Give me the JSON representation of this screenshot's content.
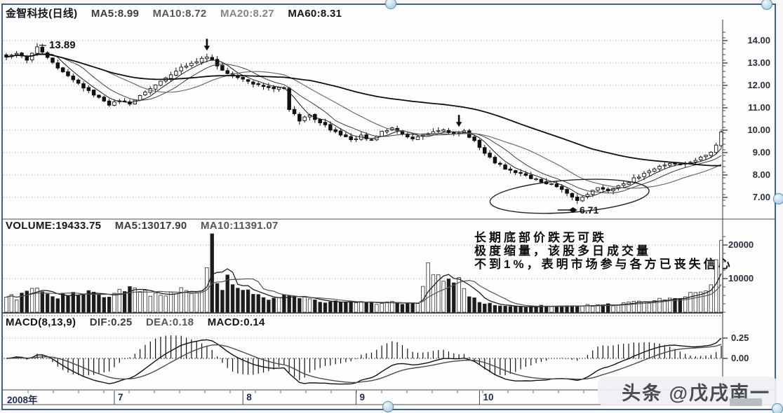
{
  "title_bar": {
    "parts": [
      "金智科技(日线)",
      "MA5:8.99",
      "MA10:8.72",
      "MA20:8.27",
      "MA60:8.31"
    ]
  },
  "price_panel": {
    "axis_labels": [
      "14.00",
      "13.00",
      "12.00",
      "11.00",
      "10.00",
      "9.00",
      "8.00",
      "7.00"
    ],
    "high_label": "13.89",
    "low_label": "6.71"
  },
  "volume_panel": {
    "parts": [
      "VOLUME:19433.75",
      "MA5:13017.90",
      "MA10:11391.07"
    ],
    "axis_labels": [
      "20000",
      "10000"
    ],
    "annotation": [
      "长期底部价跌无可跌",
      "极度缩量，该股多日成交量",
      "不到1%，表明市场参与各方已丧失信心"
    ]
  },
  "macd_panel": {
    "parts": [
      "MACD(8,13,9)",
      "DIF:0.25",
      "DEA:0.18",
      "MACD:0.14"
    ],
    "axis_labels": [
      "0.25",
      "0.00"
    ]
  },
  "time_axis": {
    "year": "2008年",
    "months": [
      "7",
      "8",
      "9",
      "10"
    ]
  },
  "watermark": "头条 @戊戌南一",
  "ui": {
    "selection_handles": [
      "top-middle",
      "top-right",
      "middle-right",
      "bottom-middle",
      "bottom-right"
    ]
  },
  "chart_data": {
    "type": "candlestick",
    "title": "金智科技(日线)",
    "n": 140,
    "grid": true,
    "price_axis": {
      "ticks": [
        14,
        13,
        12,
        11,
        10,
        9,
        8,
        7
      ],
      "ylim": [
        6.6,
        14.4
      ]
    },
    "close_anchors": [
      [
        0,
        13.25
      ],
      [
        2,
        13.45
      ],
      [
        4,
        13.1
      ],
      [
        6,
        13.7
      ],
      [
        8,
        13.2
      ],
      [
        10,
        12.8
      ],
      [
        12,
        12.45
      ],
      [
        14,
        12.1
      ],
      [
        16,
        11.75
      ],
      [
        18,
        11.45
      ],
      [
        20,
        11.15
      ],
      [
        22,
        11.35
      ],
      [
        24,
        11.15
      ],
      [
        26,
        11.55
      ],
      [
        28,
        11.85
      ],
      [
        30,
        12.15
      ],
      [
        32,
        12.5
      ],
      [
        34,
        12.8
      ],
      [
        36,
        13.0
      ],
      [
        39,
        13.3
      ],
      [
        41,
        12.9
      ],
      [
        43,
        12.55
      ],
      [
        45,
        12.35
      ],
      [
        47,
        12.15
      ],
      [
        49,
        12.05
      ],
      [
        51,
        11.9
      ],
      [
        54,
        11.85
      ],
      [
        55,
        10.95
      ],
      [
        57,
        10.45
      ],
      [
        59,
        10.65
      ],
      [
        61,
        10.35
      ],
      [
        63,
        10.05
      ],
      [
        65,
        9.8
      ],
      [
        67,
        9.55
      ],
      [
        69,
        9.75
      ],
      [
        71,
        9.5
      ],
      [
        73,
        9.95
      ],
      [
        75,
        10.1
      ],
      [
        77,
        9.85
      ],
      [
        79,
        9.6
      ],
      [
        81,
        9.75
      ],
      [
        83,
        9.9
      ],
      [
        85,
        10.0
      ],
      [
        87,
        9.85
      ],
      [
        89,
        9.95
      ],
      [
        91,
        9.5
      ],
      [
        93,
        9.0
      ],
      [
        95,
        8.55
      ],
      [
        97,
        8.3
      ],
      [
        99,
        8.15
      ],
      [
        101,
        7.95
      ],
      [
        103,
        7.8
      ],
      [
        105,
        7.65
      ],
      [
        107,
        7.5
      ],
      [
        109,
        7.2
      ],
      [
        111,
        6.85
      ],
      [
        113,
        7.15
      ],
      [
        115,
        7.4
      ],
      [
        117,
        7.3
      ],
      [
        119,
        7.55
      ],
      [
        121,
        7.7
      ],
      [
        123,
        7.95
      ],
      [
        125,
        8.2
      ],
      [
        127,
        8.35
      ],
      [
        129,
        8.5
      ],
      [
        131,
        8.45
      ],
      [
        133,
        8.6
      ],
      [
        135,
        8.75
      ],
      [
        137,
        9.0
      ],
      [
        138,
        9.35
      ],
      [
        139,
        9.95
      ]
    ],
    "high_point": {
      "index": 6,
      "value": 13.89
    },
    "low_point": {
      "index": 111,
      "value": 6.71
    },
    "ma_current": {
      "MA5": 8.99,
      "MA10": 8.72,
      "MA20": 8.27,
      "MA60": 8.31
    },
    "ma_windows": [
      5,
      10,
      20,
      60
    ],
    "volume": {
      "current": 19433.75,
      "MA5": 13017.9,
      "MA10": 11391.07,
      "axis_ticks": [
        20000,
        10000
      ],
      "anchors": [
        [
          0,
          5200
        ],
        [
          2,
          4300
        ],
        [
          4,
          6200
        ],
        [
          6,
          6800
        ],
        [
          8,
          5200
        ],
        [
          10,
          4400
        ],
        [
          12,
          5600
        ],
        [
          14,
          4800
        ],
        [
          16,
          6000
        ],
        [
          18,
          5000
        ],
        [
          20,
          4200
        ],
        [
          22,
          6400
        ],
        [
          24,
          7600
        ],
        [
          26,
          6600
        ],
        [
          28,
          5600
        ],
        [
          30,
          5000
        ],
        [
          32,
          5600
        ],
        [
          34,
          6600
        ],
        [
          36,
          5400
        ],
        [
          38,
          5800
        ],
        [
          39,
          14500
        ],
        [
          40,
          22500
        ],
        [
          41,
          9000
        ],
        [
          42,
          7400
        ],
        [
          43,
          9800
        ],
        [
          44,
          8600
        ],
        [
          45,
          8000
        ],
        [
          46,
          7200
        ],
        [
          48,
          5800
        ],
        [
          50,
          4600
        ],
        [
          52,
          3900
        ],
        [
          54,
          4700
        ],
        [
          56,
          5300
        ],
        [
          58,
          4100
        ],
        [
          60,
          3500
        ],
        [
          62,
          3000
        ],
        [
          64,
          3400
        ],
        [
          66,
          2800
        ],
        [
          68,
          2600
        ],
        [
          70,
          3200
        ],
        [
          72,
          2700
        ],
        [
          74,
          3100
        ],
        [
          76,
          2500
        ],
        [
          78,
          2900
        ],
        [
          80,
          2500
        ],
        [
          81,
          8400
        ],
        [
          82,
          13000
        ],
        [
          83,
          10600
        ],
        [
          84,
          12000
        ],
        [
          85,
          9200
        ],
        [
          86,
          11000
        ],
        [
          87,
          8400
        ],
        [
          88,
          9600
        ],
        [
          89,
          7200
        ],
        [
          90,
          4400
        ],
        [
          92,
          3100
        ],
        [
          94,
          2500
        ],
        [
          96,
          2100
        ],
        [
          98,
          1900
        ],
        [
          100,
          1700
        ],
        [
          102,
          1600
        ],
        [
          104,
          1800
        ],
        [
          106,
          1600
        ],
        [
          108,
          1900
        ],
        [
          110,
          1700
        ],
        [
          112,
          2100
        ],
        [
          114,
          1900
        ],
        [
          116,
          2300
        ],
        [
          118,
          2100
        ],
        [
          120,
          2700
        ],
        [
          122,
          3300
        ],
        [
          124,
          2900
        ],
        [
          126,
          3700
        ],
        [
          128,
          4300
        ],
        [
          130,
          3900
        ],
        [
          132,
          4700
        ],
        [
          134,
          5600
        ],
        [
          136,
          7200
        ],
        [
          137,
          9500
        ],
        [
          138,
          14000
        ],
        [
          139,
          20000
        ]
      ]
    },
    "macd": {
      "params": [
        8,
        13,
        9
      ],
      "DIF": 0.25,
      "DEA": 0.18,
      "MACD": 0.14,
      "axis_ticks": [
        0.25,
        0.0
      ]
    },
    "annotations": {
      "down_arrows": [
        {
          "index": 39,
          "price": 13.55
        },
        {
          "index": 88,
          "price": 10.15
        }
      ],
      "ellipse": {
        "from_index": 94,
        "to_index": 125,
        "price_center": 7.05,
        "price_halfspan": 0.72
      },
      "high_label": "13.89",
      "low_label": "6.71"
    },
    "x_axis": {
      "year": "2008年",
      "month_boundaries": [
        {
          "label": "7",
          "index": 21
        },
        {
          "label": "8",
          "index": 46
        },
        {
          "label": "9",
          "index": 68
        },
        {
          "label": "10",
          "index": 92
        }
      ]
    }
  }
}
